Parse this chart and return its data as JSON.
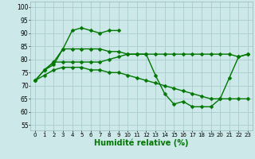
{
  "line1_x": [
    0,
    1,
    2,
    3,
    4,
    5,
    6,
    7,
    8,
    9
  ],
  "line1_y": [
    72,
    76,
    79,
    84,
    91,
    92,
    91,
    90,
    91,
    91
  ],
  "line2_x": [
    0,
    1,
    2,
    3,
    4,
    5,
    6,
    7,
    8,
    9,
    10,
    11,
    12,
    13,
    14,
    15,
    16,
    17,
    18,
    19,
    20,
    21,
    22,
    23
  ],
  "line2_y": [
    72,
    76,
    78,
    84,
    84,
    84,
    84,
    84,
    83,
    83,
    82,
    82,
    82,
    82,
    82,
    82,
    82,
    82,
    82,
    82,
    82,
    82,
    81,
    82
  ],
  "line3_x": [
    0,
    1,
    2,
    3,
    4,
    5,
    6,
    7,
    8,
    9,
    10,
    11,
    12,
    13,
    14,
    15,
    16,
    17,
    18,
    19,
    20,
    21,
    22,
    23
  ],
  "line3_y": [
    72,
    74,
    76,
    77,
    77,
    77,
    76,
    76,
    75,
    75,
    74,
    73,
    72,
    71,
    70,
    69,
    68,
    67,
    66,
    65,
    65,
    65,
    65,
    65
  ],
  "line4_x": [
    1,
    2,
    3,
    4,
    5,
    6,
    7,
    8,
    9,
    10,
    11,
    12,
    13,
    14,
    15,
    16,
    17,
    18,
    19,
    20,
    21,
    22,
    23
  ],
  "line4_y": [
    76,
    79,
    79,
    79,
    79,
    79,
    79,
    80,
    81,
    82,
    82,
    82,
    74,
    67,
    63,
    64,
    62,
    62,
    62,
    65,
    73,
    81,
    82
  ],
  "bg_color": "#cce8e8",
  "grid_color": "#aacccc",
  "line_color": "#007700",
  "markersize": 2.5,
  "linewidth": 1.0,
  "xlabel": "Humidité relative (%)",
  "xlabel_fontsize": 7,
  "ylim": [
    53,
    102
  ],
  "xlim": [
    -0.5,
    23.5
  ],
  "yticks": [
    55,
    60,
    65,
    70,
    75,
    80,
    85,
    90,
    95,
    100
  ],
  "xticks": [
    0,
    1,
    2,
    3,
    4,
    5,
    6,
    7,
    8,
    9,
    10,
    11,
    12,
    13,
    14,
    15,
    16,
    17,
    18,
    19,
    20,
    21,
    22,
    23
  ],
  "ytick_fontsize": 5.5,
  "xtick_fontsize": 5.0
}
